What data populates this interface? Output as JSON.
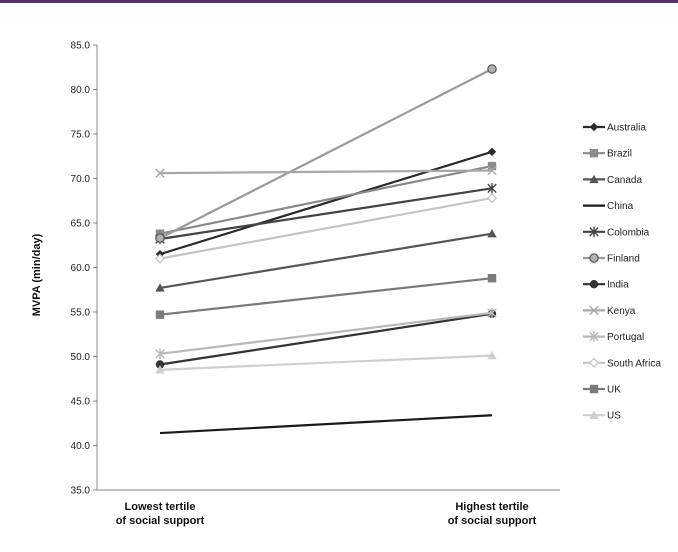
{
  "chart_data": {
    "type": "line",
    "title": "",
    "ylabel": "MVPA (min/day)",
    "xlabel": "",
    "categories": [
      [
        "Lowest tertile",
        "of social support"
      ],
      [
        "Highest tertile",
        "of social support"
      ]
    ],
    "ylim": [
      35.0,
      85.0
    ],
    "yticks": [
      "35.0",
      "40.0",
      "45.0",
      "50.0",
      "55.0",
      "60.0",
      "65.0",
      "70.0",
      "75.0",
      "80.0",
      "85.0"
    ],
    "legend_position": "right",
    "series": [
      {
        "name": "Australia",
        "values": [
          61.5,
          73.0
        ],
        "color": "#2b2b2b",
        "marker": "diamond"
      },
      {
        "name": "Brazil",
        "values": [
          63.8,
          71.4
        ],
        "color": "#8a8a8a",
        "marker": "square"
      },
      {
        "name": "Canada",
        "values": [
          57.7,
          63.8
        ],
        "color": "#555555",
        "marker": "triangle"
      },
      {
        "name": "China",
        "values": [
          41.4,
          43.4
        ],
        "color": "#1a1a1a",
        "marker": "none"
      },
      {
        "name": "Colombia",
        "values": [
          63.2,
          68.9
        ],
        "color": "#444444",
        "marker": "star"
      },
      {
        "name": "Finland",
        "values": [
          63.3,
          82.3
        ],
        "color": "#9a9a9a",
        "marker": "circle-open"
      },
      {
        "name": "India",
        "values": [
          49.1,
          54.8
        ],
        "color": "#333333",
        "marker": "circle"
      },
      {
        "name": "Kenya",
        "values": [
          70.6,
          70.9
        ],
        "color": "#a8a8a8",
        "marker": "x"
      },
      {
        "name": "Portugal",
        "values": [
          50.3,
          54.9
        ],
        "color": "#b8b8b8",
        "marker": "star"
      },
      {
        "name": "South Africa",
        "values": [
          61.0,
          67.8
        ],
        "color": "#c4c4c4",
        "marker": "diamond-open"
      },
      {
        "name": "UK",
        "values": [
          54.7,
          58.8
        ],
        "color": "#7a7a7a",
        "marker": "square"
      },
      {
        "name": "US",
        "values": [
          48.5,
          50.1
        ],
        "color": "#cfcfcf",
        "marker": "triangle"
      }
    ]
  }
}
